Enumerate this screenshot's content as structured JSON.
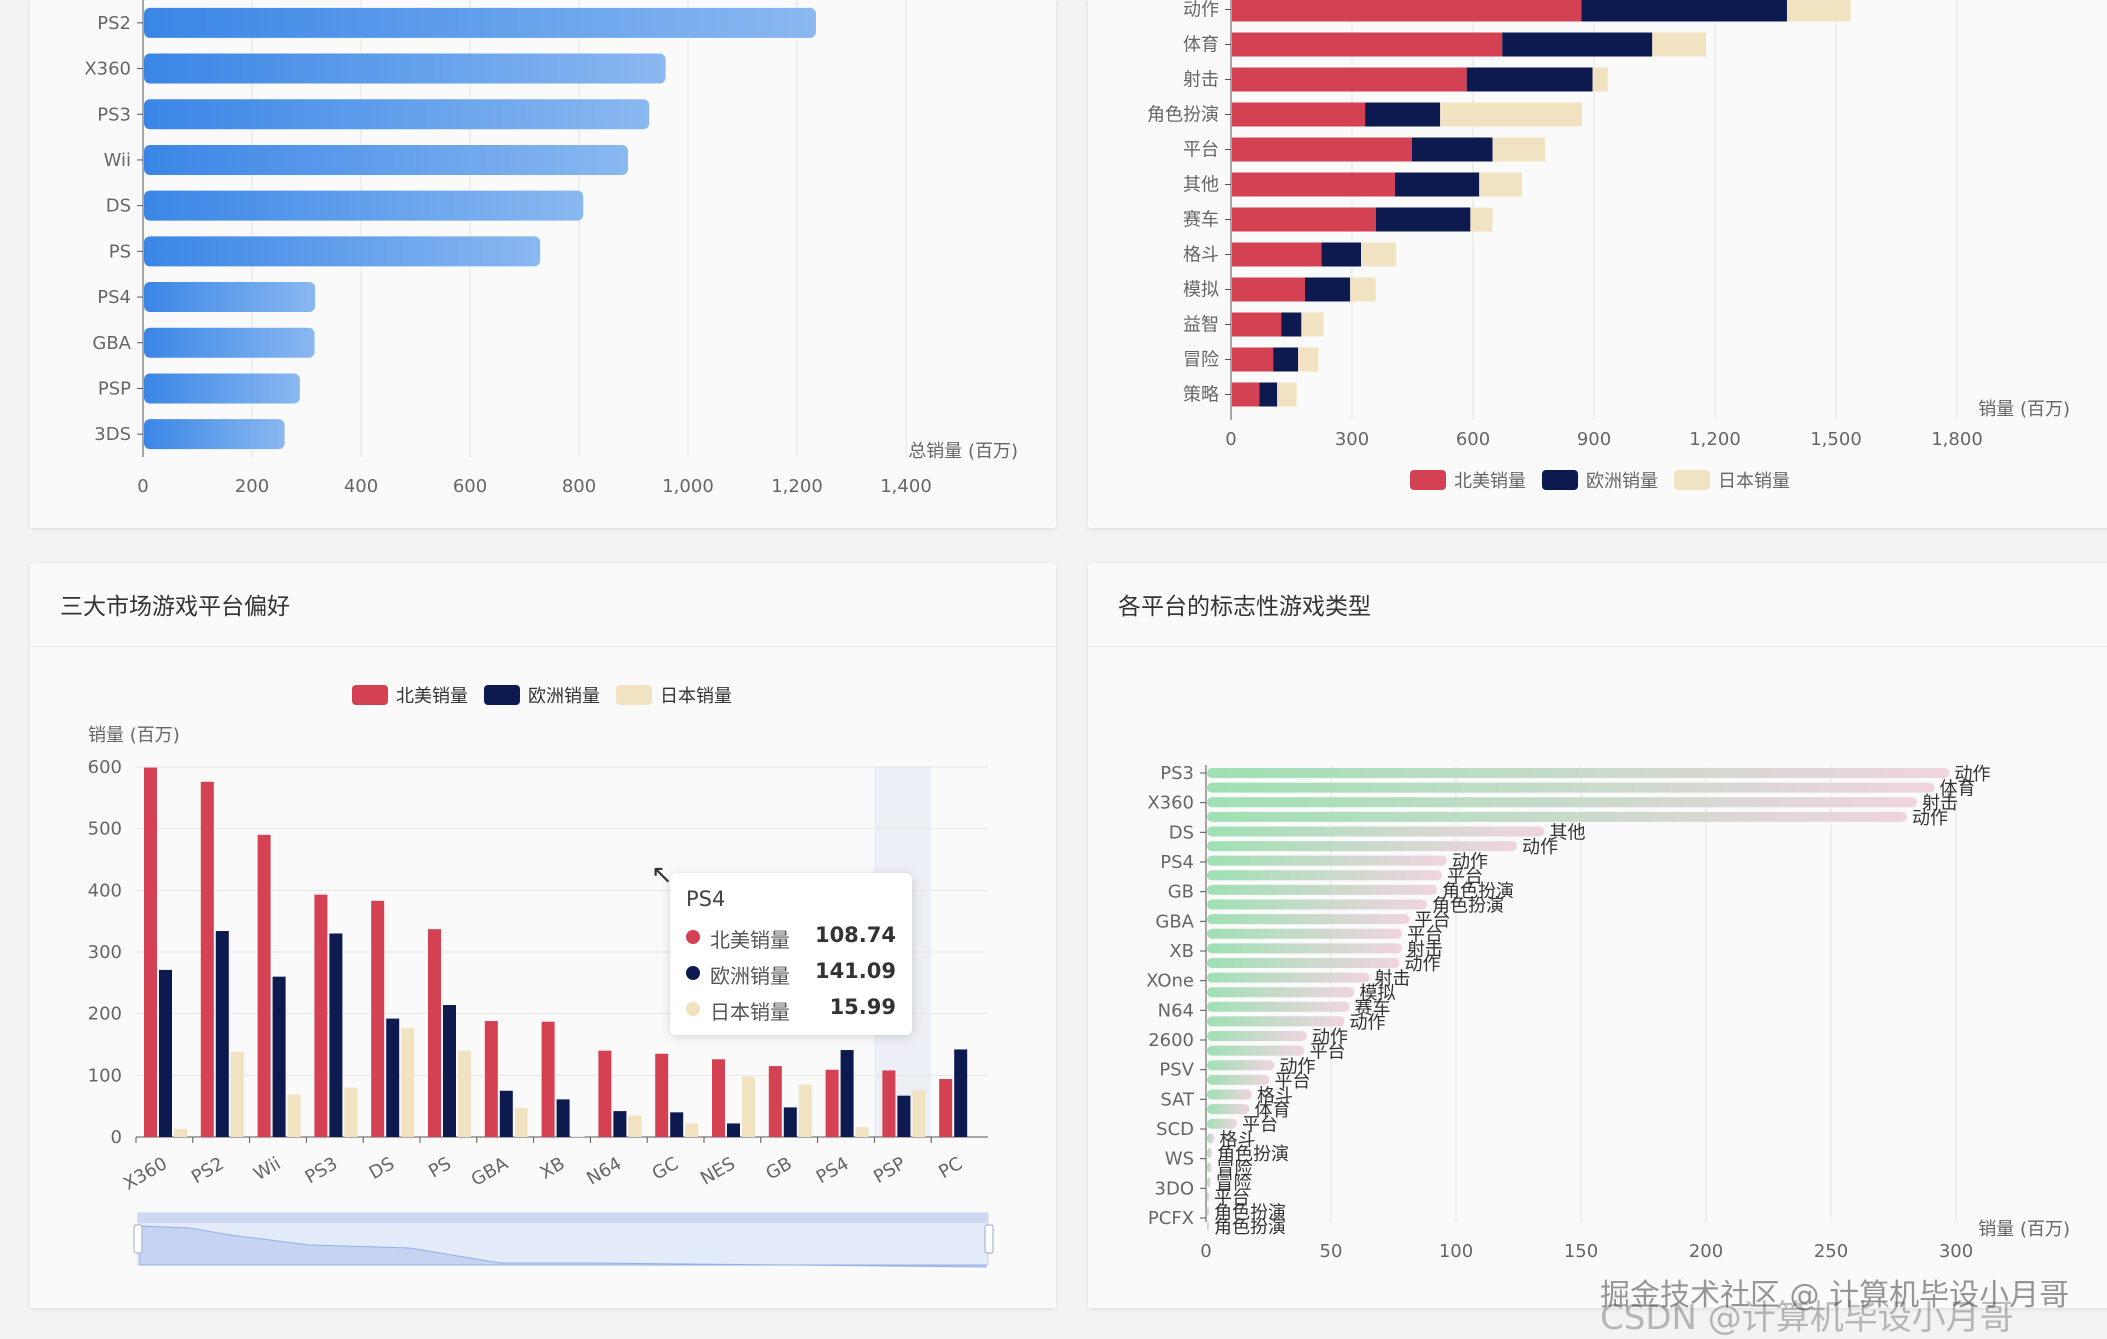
{
  "colors": {
    "na": "#d34153",
    "eu": "#0d1a4f",
    "jp": "#f1e2c2",
    "blue_start": "#3a86e6",
    "blue_end": "#8ab8f0",
    "green_start": "#9fe0b4",
    "pink_end": "#f0d4e0"
  },
  "panels": {
    "top_left": {},
    "top_right": {},
    "bottom_left": {
      "title": "三大市场游戏平台偏好"
    },
    "bottom_right": {
      "title": "各平台的标志性游戏类型"
    }
  },
  "tooltip": {
    "title": "PS4",
    "rows": [
      {
        "name": "北美销量",
        "value": "108.74"
      },
      {
        "name": "欧洲销量",
        "value": "141.09"
      },
      {
        "name": "日本销量",
        "value": "15.99"
      }
    ]
  },
  "watermark": {
    "left": "掘金技术社区 @ 计算机毕设小月哥",
    "right": "CSDN @计算机毕设小月哥"
  },
  "chart_data": [
    {
      "id": "platform-total",
      "type": "bar",
      "orientation": "horizontal",
      "categories": [
        "PS2",
        "X360",
        "PS3",
        "Wii",
        "DS",
        "PS",
        "PS4",
        "GBA",
        "PSP",
        "3DS"
      ],
      "values": [
        1233,
        957,
        927,
        888,
        806,
        727,
        314,
        313,
        286,
        258
      ],
      "xlabel": "总销量 (百万)",
      "xlim": [
        0,
        1400
      ],
      "xticks": [
        "0",
        "200",
        "400",
        "600",
        "800",
        "1,000",
        "1,200",
        "1,400"
      ],
      "grid": true
    },
    {
      "id": "genre-stacked",
      "type": "bar",
      "orientation": "horizontal",
      "stacked": true,
      "categories": [
        "动作",
        "体育",
        "射击",
        "角色扮演",
        "平台",
        "其他",
        "赛车",
        "格斗",
        "模拟",
        "益智",
        "冒险",
        "策略"
      ],
      "series": [
        {
          "name": "北美销量",
          "values": [
            866,
            670,
            582,
            330,
            446,
            404,
            357,
            222,
            181,
            122,
            102,
            68
          ]
        },
        {
          "name": "欧洲销量",
          "values": [
            510,
            372,
            312,
            186,
            200,
            209,
            234,
            98,
            112,
            50,
            62,
            44
          ]
        },
        {
          "name": "日本销量",
          "values": [
            158,
            133,
            38,
            352,
            130,
            106,
            55,
            87,
            63,
            55,
            50,
            48
          ]
        }
      ],
      "xlabel": "销量 (百万)",
      "xlim": [
        0,
        1800
      ],
      "xticks": [
        "0",
        "300",
        "600",
        "900",
        "1,200",
        "1,500",
        "1,800"
      ],
      "legend": "bottom",
      "grid": true
    },
    {
      "id": "market-platform",
      "type": "bar",
      "title": "三大市场游戏平台偏好",
      "categories": [
        "X360",
        "PS2",
        "Wii",
        "PS3",
        "DS",
        "PS",
        "GBA",
        "XB",
        "N64",
        "GC",
        "NES",
        "GB",
        "PS4",
        "PSP",
        "PC"
      ],
      "series": [
        {
          "name": "北美销量",
          "values": [
            599,
            576,
            490,
            393,
            383,
            337,
            188,
            187,
            140,
            135,
            126,
            115,
            109,
            108,
            94
          ]
        },
        {
          "name": "欧洲销量",
          "values": [
            271,
            334,
            260,
            330,
            192,
            214,
            75,
            61,
            42,
            40,
            22,
            48,
            141,
            67,
            142
          ]
        },
        {
          "name": "日本销量",
          "values": [
            13,
            138,
            69,
            80,
            177,
            140,
            47,
            1,
            35,
            22,
            98,
            85,
            16,
            76,
            0
          ]
        }
      ],
      "ylabel": "销量 (百万)",
      "ylim": [
        0,
        600
      ],
      "yticks": [
        "0",
        "100",
        "200",
        "300",
        "400",
        "500",
        "600"
      ],
      "highlight": "PSP",
      "legend": "top",
      "grid": true
    },
    {
      "id": "platform-signature-genre",
      "type": "bar",
      "orientation": "horizontal",
      "title": "各平台的标志性游戏类型",
      "ylabels": [
        "PS3",
        "X360",
        "DS",
        "PS4",
        "GB",
        "GBA",
        "XB",
        "XOne",
        "N64",
        "2600",
        "PSV",
        "SAT",
        "SCD",
        "WS",
        "3DO",
        "PCFX"
      ],
      "values": [
        297,
        291,
        284,
        280,
        135,
        124,
        96,
        94,
        92,
        88,
        81,
        78,
        78,
        77,
        65,
        59,
        57,
        55,
        40,
        39,
        27,
        25,
        18,
        17,
        12,
        3,
        2,
        1.8,
        1.4,
        0.8,
        0.6,
        0.3
      ],
      "labels": [
        "动作",
        "体育",
        "射击",
        "动作",
        "其他",
        "动作",
        "动作",
        "平台",
        "角色扮演",
        "角色扮演",
        "平台",
        "平台",
        "射击",
        "动作",
        "射击",
        "模拟",
        "赛车",
        "动作",
        "动作",
        "平台",
        "动作",
        "平台",
        "格斗",
        "体育",
        "平台",
        "格斗",
        "角色扮演",
        "冒险",
        "冒险",
        "平台",
        "角色扮演",
        "角色扮演"
      ],
      "xlabel": "销量 (百万)",
      "xlim": [
        0,
        300
      ],
      "xticks": [
        "0",
        "50",
        "100",
        "150",
        "200",
        "250",
        "300"
      ],
      "grid": true
    }
  ]
}
